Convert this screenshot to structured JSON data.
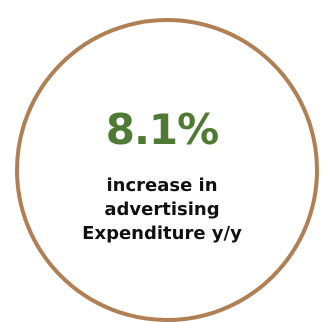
{
  "stat": {
    "value": "8.1%",
    "caption_lines": [
      "increase in",
      "advertising",
      "Expenditure y/y"
    ]
  },
  "colors": {
    "ring": "#b07f54",
    "value": "#4f7a34",
    "caption": "#111111"
  }
}
